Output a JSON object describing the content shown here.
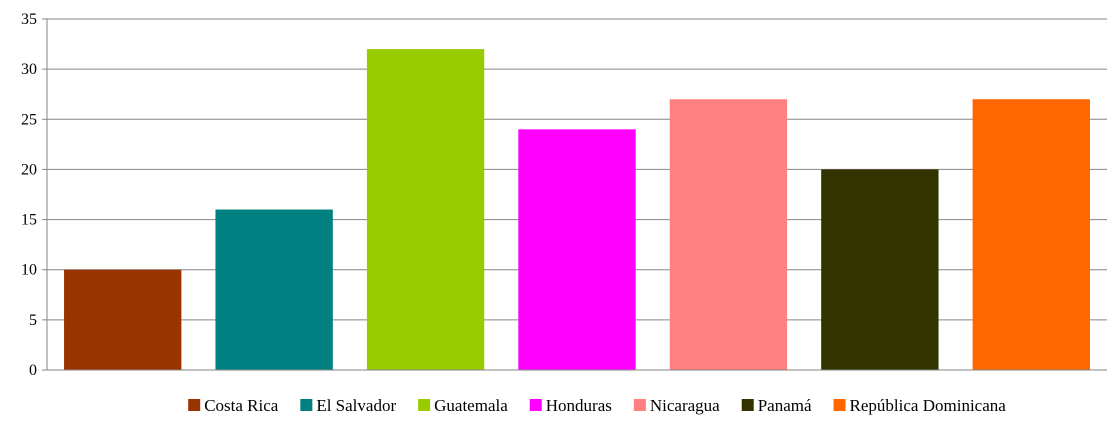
{
  "chart_data": {
    "type": "bar",
    "title": "",
    "xlabel": "",
    "ylabel": "",
    "ylim": [
      0,
      35
    ],
    "yticks": [
      0,
      5,
      10,
      15,
      20,
      25,
      30,
      35
    ],
    "grid": true,
    "legend_position": "bottom",
    "categories": [
      "Costa Rica",
      "El Salvador",
      "Guatemala",
      "Honduras",
      "Nicaragua",
      "Panamá",
      "República Dominicana"
    ],
    "values": [
      10,
      16,
      32,
      24,
      27,
      20,
      27
    ],
    "colors": [
      "#993300",
      "#008080",
      "#99CC00",
      "#FF00FF",
      "#FF8080",
      "#333300",
      "#FF6600"
    ]
  }
}
